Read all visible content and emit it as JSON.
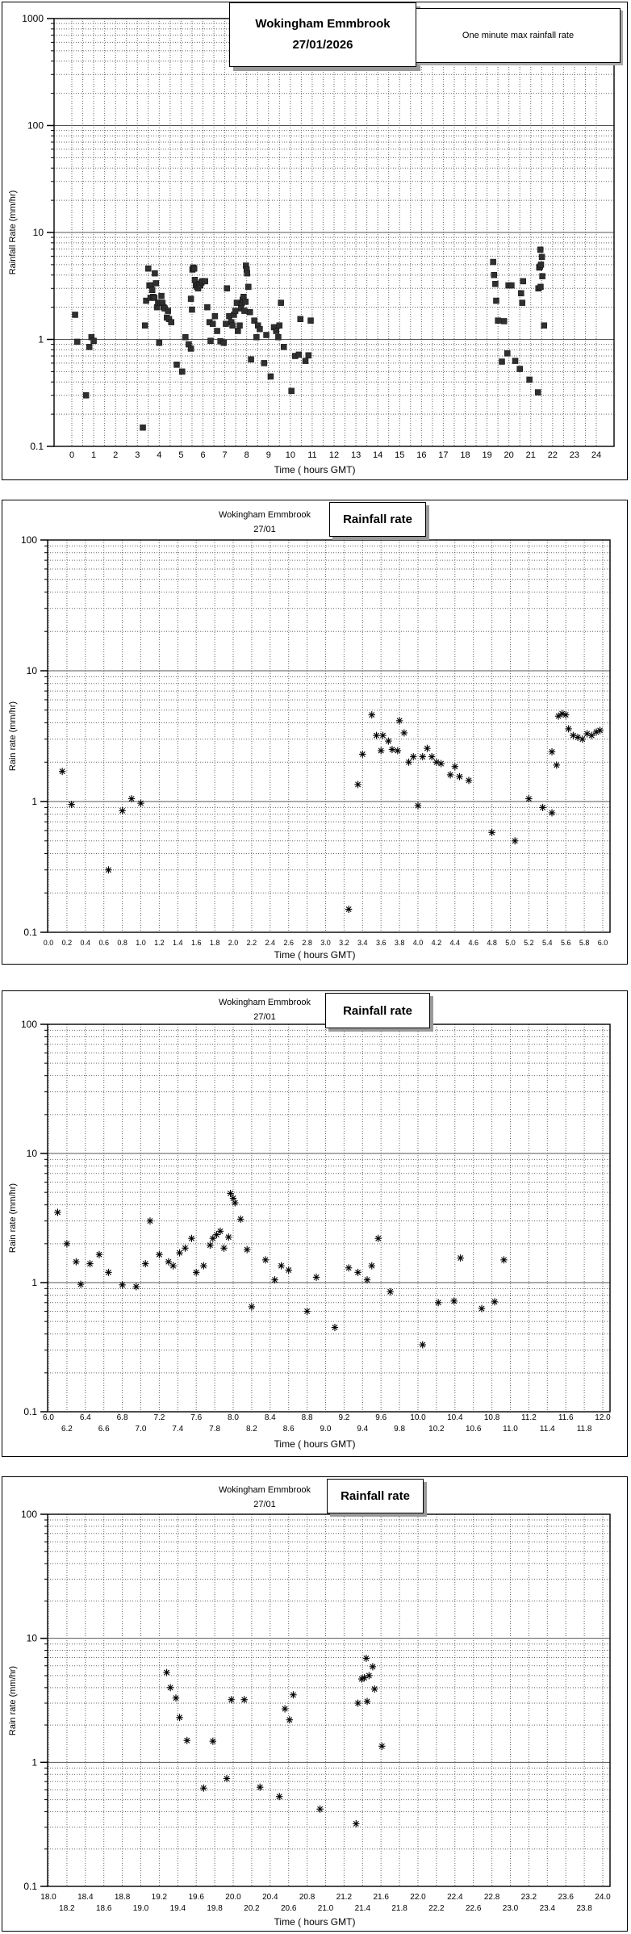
{
  "page": {
    "background": "#ffffff",
    "grid_color": "#666666",
    "axis_color": "#000000",
    "square_marker_color": "#2f2f2f",
    "asterisk_marker_color": "#000000"
  },
  "chart_data": [
    {
      "type": "scatter",
      "y_scale": "log",
      "title_line1": "Wokingham Emmbrook",
      "title_line2": "27/01/2026",
      "legend_label": "One minute max rainfall rate",
      "ylabel": "Rainfall Rate (mm/hr)",
      "xlabel": "Time ( hours GMT)",
      "marker": "square",
      "ylim": [
        0.1,
        1000
      ],
      "xlim": [
        0,
        24
      ],
      "y_tick_labels": [
        "1000",
        "100",
        "10",
        "1",
        "0.1"
      ],
      "x_tick_labels_row1": [
        "0",
        "1",
        "2",
        "3",
        "4",
        "5",
        "6",
        "7",
        "8",
        "9",
        "10",
        "11",
        "12",
        "13",
        "14",
        "15",
        "16",
        "17",
        "18",
        "19",
        "20",
        "21",
        "22",
        "23",
        "24"
      ],
      "x_tick_labels_row2": [],
      "points": [
        [
          0.15,
          1.7
        ],
        [
          0.25,
          0.95
        ],
        [
          0.65,
          0.3
        ],
        [
          0.8,
          0.85
        ],
        [
          0.9,
          1.05
        ],
        [
          1.0,
          0.97
        ],
        [
          3.25,
          0.15
        ],
        [
          3.35,
          1.35
        ],
        [
          3.4,
          2.3
        ],
        [
          3.5,
          4.6
        ],
        [
          3.55,
          3.2
        ],
        [
          3.6,
          2.45
        ],
        [
          3.62,
          3.2
        ],
        [
          3.68,
          2.9
        ],
        [
          3.72,
          2.5
        ],
        [
          3.78,
          2.45
        ],
        [
          3.8,
          4.15
        ],
        [
          3.85,
          3.35
        ],
        [
          3.9,
          2.0
        ],
        [
          3.95,
          2.2
        ],
        [
          4.0,
          0.93
        ],
        [
          4.05,
          2.2
        ],
        [
          4.1,
          2.55
        ],
        [
          4.15,
          2.2
        ],
        [
          4.2,
          2.0
        ],
        [
          4.25,
          1.95
        ],
        [
          4.35,
          1.6
        ],
        [
          4.4,
          1.85
        ],
        [
          4.45,
          1.55
        ],
        [
          4.55,
          1.45
        ],
        [
          4.8,
          0.58
        ],
        [
          5.05,
          0.5
        ],
        [
          5.2,
          1.05
        ],
        [
          5.35,
          0.9
        ],
        [
          5.45,
          0.82
        ],
        [
          5.45,
          2.4
        ],
        [
          5.5,
          1.9
        ],
        [
          5.52,
          4.5
        ],
        [
          5.56,
          4.7
        ],
        [
          5.6,
          4.6
        ],
        [
          5.63,
          3.6
        ],
        [
          5.68,
          3.2
        ],
        [
          5.73,
          3.1
        ],
        [
          5.78,
          3.0
        ],
        [
          5.83,
          3.3
        ],
        [
          5.88,
          3.2
        ],
        [
          5.93,
          3.4
        ],
        [
          5.97,
          3.5
        ],
        [
          6.1,
          3.5
        ],
        [
          6.2,
          2.0
        ],
        [
          6.3,
          1.45
        ],
        [
          6.35,
          0.97
        ],
        [
          6.45,
          1.4
        ],
        [
          6.55,
          1.65
        ],
        [
          6.65,
          1.2
        ],
        [
          6.8,
          0.96
        ],
        [
          6.95,
          0.93
        ],
        [
          7.05,
          1.4
        ],
        [
          7.1,
          3.0
        ],
        [
          7.2,
          1.65
        ],
        [
          7.3,
          1.45
        ],
        [
          7.35,
          1.35
        ],
        [
          7.42,
          1.7
        ],
        [
          7.48,
          1.85
        ],
        [
          7.55,
          2.2
        ],
        [
          7.6,
          1.2
        ],
        [
          7.68,
          1.35
        ],
        [
          7.75,
          1.95
        ],
        [
          7.78,
          2.2
        ],
        [
          7.82,
          2.35
        ],
        [
          7.86,
          2.5
        ],
        [
          7.9,
          1.85
        ],
        [
          7.95,
          2.25
        ],
        [
          7.97,
          4.9
        ],
        [
          8.0,
          4.5
        ],
        [
          8.02,
          4.15
        ],
        [
          8.08,
          3.1
        ],
        [
          8.15,
          1.8
        ],
        [
          8.2,
          0.65
        ],
        [
          8.35,
          1.5
        ],
        [
          8.45,
          1.05
        ],
        [
          8.52,
          1.35
        ],
        [
          8.6,
          1.25
        ],
        [
          8.8,
          0.6
        ],
        [
          8.9,
          1.1
        ],
        [
          9.1,
          0.45
        ],
        [
          9.25,
          1.3
        ],
        [
          9.35,
          1.2
        ],
        [
          9.45,
          1.05
        ],
        [
          9.5,
          1.35
        ],
        [
          9.57,
          2.2
        ],
        [
          9.7,
          0.85
        ],
        [
          10.05,
          0.33
        ],
        [
          10.22,
          0.7
        ],
        [
          10.39,
          0.72
        ],
        [
          10.46,
          1.55
        ],
        [
          10.69,
          0.63
        ],
        [
          10.83,
          0.71
        ],
        [
          10.93,
          1.5
        ],
        [
          19.28,
          5.3
        ],
        [
          19.32,
          4.0
        ],
        [
          19.38,
          3.3
        ],
        [
          19.42,
          2.3
        ],
        [
          19.5,
          1.5
        ],
        [
          19.68,
          0.62
        ],
        [
          19.78,
          1.48
        ],
        [
          19.93,
          0.74
        ],
        [
          19.98,
          3.2
        ],
        [
          20.12,
          3.2
        ],
        [
          20.29,
          0.63
        ],
        [
          20.5,
          0.53
        ],
        [
          20.56,
          2.7
        ],
        [
          20.61,
          2.2
        ],
        [
          20.65,
          3.5
        ],
        [
          20.94,
          0.42
        ],
        [
          21.33,
          0.32
        ],
        [
          21.35,
          3.0
        ],
        [
          21.39,
          4.7
        ],
        [
          21.42,
          4.8
        ],
        [
          21.44,
          6.9
        ],
        [
          21.45,
          3.1
        ],
        [
          21.47,
          5.0
        ],
        [
          21.51,
          5.9
        ],
        [
          21.53,
          3.9
        ],
        [
          21.61,
          1.35
        ]
      ]
    },
    {
      "type": "scatter",
      "y_scale": "log",
      "title_line1": "Wokingham Emmbrook",
      "title_line2": "27/01",
      "legend_label": "Rainfall rate",
      "ylabel": "Rain rate (mm/hr)",
      "xlabel": "Time ( hours GMT)",
      "marker": "asterisk",
      "ylim": [
        0.1,
        100
      ],
      "xlim": [
        0,
        6
      ],
      "y_tick_labels": [
        "100",
        "10",
        "1",
        "0.1"
      ],
      "x_tick_labels_row1": [
        "0.0",
        "0.2",
        "0.4",
        "0.6",
        "0.8",
        "1.0",
        "1.2",
        "1.4",
        "1.6",
        "1.8",
        "2.0",
        "2.2",
        "2.4",
        "2.6",
        "2.8",
        "3.0",
        "3.2",
        "3.4",
        "3.6",
        "3.8",
        "4.0",
        "4.2",
        "4.4",
        "4.6",
        "4.8",
        "5.0",
        "5.2",
        "5.4",
        "5.6",
        "5.8",
        "6.0"
      ],
      "x_tick_labels_row2": [],
      "points": [
        [
          0.15,
          1.7
        ],
        [
          0.25,
          0.95
        ],
        [
          0.65,
          0.3
        ],
        [
          0.8,
          0.85
        ],
        [
          0.9,
          1.05
        ],
        [
          1.0,
          0.97
        ],
        [
          3.25,
          0.15
        ],
        [
          3.35,
          1.35
        ],
        [
          3.4,
          2.3
        ],
        [
          3.5,
          4.6
        ],
        [
          3.55,
          3.2
        ],
        [
          3.6,
          2.45
        ],
        [
          3.62,
          3.2
        ],
        [
          3.68,
          2.9
        ],
        [
          3.72,
          2.5
        ],
        [
          3.78,
          2.45
        ],
        [
          3.8,
          4.15
        ],
        [
          3.85,
          3.35
        ],
        [
          3.9,
          2.0
        ],
        [
          3.95,
          2.2
        ],
        [
          4.0,
          0.93
        ],
        [
          4.05,
          2.2
        ],
        [
          4.1,
          2.55
        ],
        [
          4.15,
          2.2
        ],
        [
          4.2,
          2.0
        ],
        [
          4.25,
          1.95
        ],
        [
          4.35,
          1.6
        ],
        [
          4.4,
          1.85
        ],
        [
          4.45,
          1.55
        ],
        [
          4.55,
          1.45
        ],
        [
          4.8,
          0.58
        ],
        [
          5.05,
          0.5
        ],
        [
          5.2,
          1.05
        ],
        [
          5.35,
          0.9
        ],
        [
          5.45,
          0.82
        ],
        [
          5.45,
          2.4
        ],
        [
          5.5,
          1.9
        ],
        [
          5.52,
          4.5
        ],
        [
          5.56,
          4.7
        ],
        [
          5.6,
          4.6
        ],
        [
          5.63,
          3.6
        ],
        [
          5.68,
          3.2
        ],
        [
          5.73,
          3.1
        ],
        [
          5.78,
          3.0
        ],
        [
          5.83,
          3.3
        ],
        [
          5.88,
          3.2
        ],
        [
          5.93,
          3.4
        ],
        [
          5.97,
          3.5
        ]
      ]
    },
    {
      "type": "scatter",
      "y_scale": "log",
      "title_line1": "Wokingham Emmbrook",
      "title_line2": "27/01",
      "legend_label": "Rainfall rate",
      "ylabel": "Rain rate (mm/hr)",
      "xlabel": "Time ( hours GMT)",
      "marker": "asterisk",
      "ylim": [
        0.1,
        100
      ],
      "xlim": [
        6,
        12
      ],
      "y_tick_labels": [
        "100",
        "10",
        "1",
        "0.1"
      ],
      "x_tick_labels_row1": [
        "6.0",
        "6.4",
        "6.8",
        "7.2",
        "7.6",
        "8.0",
        "8.4",
        "8.8",
        "9.2",
        "9.6",
        "10.0",
        "10.4",
        "10.8",
        "11.2",
        "11.6",
        "12.0"
      ],
      "x_tick_labels_row2": [
        "6.2",
        "6.6",
        "7.0",
        "7.4",
        "7.8",
        "8.2",
        "8.6",
        "9.0",
        "9.4",
        "9.8",
        "10.2",
        "10.6",
        "11.0",
        "11.4",
        "11.8"
      ],
      "points": [
        [
          6.1,
          3.5
        ],
        [
          6.2,
          2.0
        ],
        [
          6.3,
          1.45
        ],
        [
          6.35,
          0.97
        ],
        [
          6.45,
          1.4
        ],
        [
          6.55,
          1.65
        ],
        [
          6.65,
          1.2
        ],
        [
          6.8,
          0.96
        ],
        [
          6.95,
          0.93
        ],
        [
          7.05,
          1.4
        ],
        [
          7.1,
          3.0
        ],
        [
          7.2,
          1.65
        ],
        [
          7.3,
          1.45
        ],
        [
          7.35,
          1.35
        ],
        [
          7.42,
          1.7
        ],
        [
          7.48,
          1.85
        ],
        [
          7.55,
          2.2
        ],
        [
          7.6,
          1.2
        ],
        [
          7.68,
          1.35
        ],
        [
          7.75,
          1.95
        ],
        [
          7.78,
          2.2
        ],
        [
          7.82,
          2.35
        ],
        [
          7.86,
          2.5
        ],
        [
          7.9,
          1.85
        ],
        [
          7.95,
          2.25
        ],
        [
          7.97,
          4.9
        ],
        [
          8.0,
          4.5
        ],
        [
          8.02,
          4.15
        ],
        [
          8.08,
          3.1
        ],
        [
          8.15,
          1.8
        ],
        [
          8.2,
          0.65
        ],
        [
          8.35,
          1.5
        ],
        [
          8.45,
          1.05
        ],
        [
          8.52,
          1.35
        ],
        [
          8.6,
          1.25
        ],
        [
          8.8,
          0.6
        ],
        [
          8.9,
          1.1
        ],
        [
          9.1,
          0.45
        ],
        [
          9.25,
          1.3
        ],
        [
          9.35,
          1.2
        ],
        [
          9.45,
          1.05
        ],
        [
          9.5,
          1.35
        ],
        [
          9.57,
          2.2
        ],
        [
          9.7,
          0.85
        ],
        [
          10.05,
          0.33
        ],
        [
          10.22,
          0.7
        ],
        [
          10.39,
          0.72
        ],
        [
          10.46,
          1.55
        ],
        [
          10.69,
          0.63
        ],
        [
          10.83,
          0.71
        ],
        [
          10.93,
          1.5
        ]
      ]
    },
    {
      "type": "scatter",
      "y_scale": "log",
      "title_line1": "Wokingham Emmbrook",
      "title_line2": "27/01",
      "legend_label": "Rainfall rate",
      "ylabel": "Rain rate (mm/hr)",
      "xlabel": "Time ( hours GMT)",
      "marker": "asterisk",
      "ylim": [
        0.1,
        100
      ],
      "xlim": [
        18,
        24
      ],
      "y_tick_labels": [
        "100",
        "10",
        "1",
        "0.1"
      ],
      "x_tick_labels_row1": [
        "18.0",
        "18.4",
        "18.8",
        "19.2",
        "19.6",
        "20.0",
        "20.4",
        "20.8",
        "21.2",
        "21.6",
        "22.0",
        "22.4",
        "22.8",
        "23.2",
        "23.6",
        "24.0"
      ],
      "x_tick_labels_row2": [
        "18.2",
        "18.6",
        "19.0",
        "19.4",
        "19.8",
        "20.2",
        "20.6",
        "21.0",
        "21.4",
        "21.8",
        "22.2",
        "22.6",
        "23.0",
        "23.4",
        "23.8"
      ],
      "points": [
        [
          19.28,
          5.3
        ],
        [
          19.32,
          4.0
        ],
        [
          19.38,
          3.3
        ],
        [
          19.42,
          2.3
        ],
        [
          19.5,
          1.5
        ],
        [
          19.68,
          0.62
        ],
        [
          19.78,
          1.48
        ],
        [
          19.93,
          0.74
        ],
        [
          19.98,
          3.2
        ],
        [
          20.12,
          3.2
        ],
        [
          20.29,
          0.63
        ],
        [
          20.5,
          0.53
        ],
        [
          20.56,
          2.7
        ],
        [
          20.61,
          2.2
        ],
        [
          20.65,
          3.5
        ],
        [
          20.94,
          0.42
        ],
        [
          21.33,
          0.32
        ],
        [
          21.35,
          3.0
        ],
        [
          21.39,
          4.7
        ],
        [
          21.42,
          4.8
        ],
        [
          21.44,
          6.9
        ],
        [
          21.45,
          3.1
        ],
        [
          21.47,
          5.0
        ],
        [
          21.51,
          5.9
        ],
        [
          21.53,
          3.9
        ],
        [
          21.61,
          1.35
        ]
      ]
    }
  ]
}
